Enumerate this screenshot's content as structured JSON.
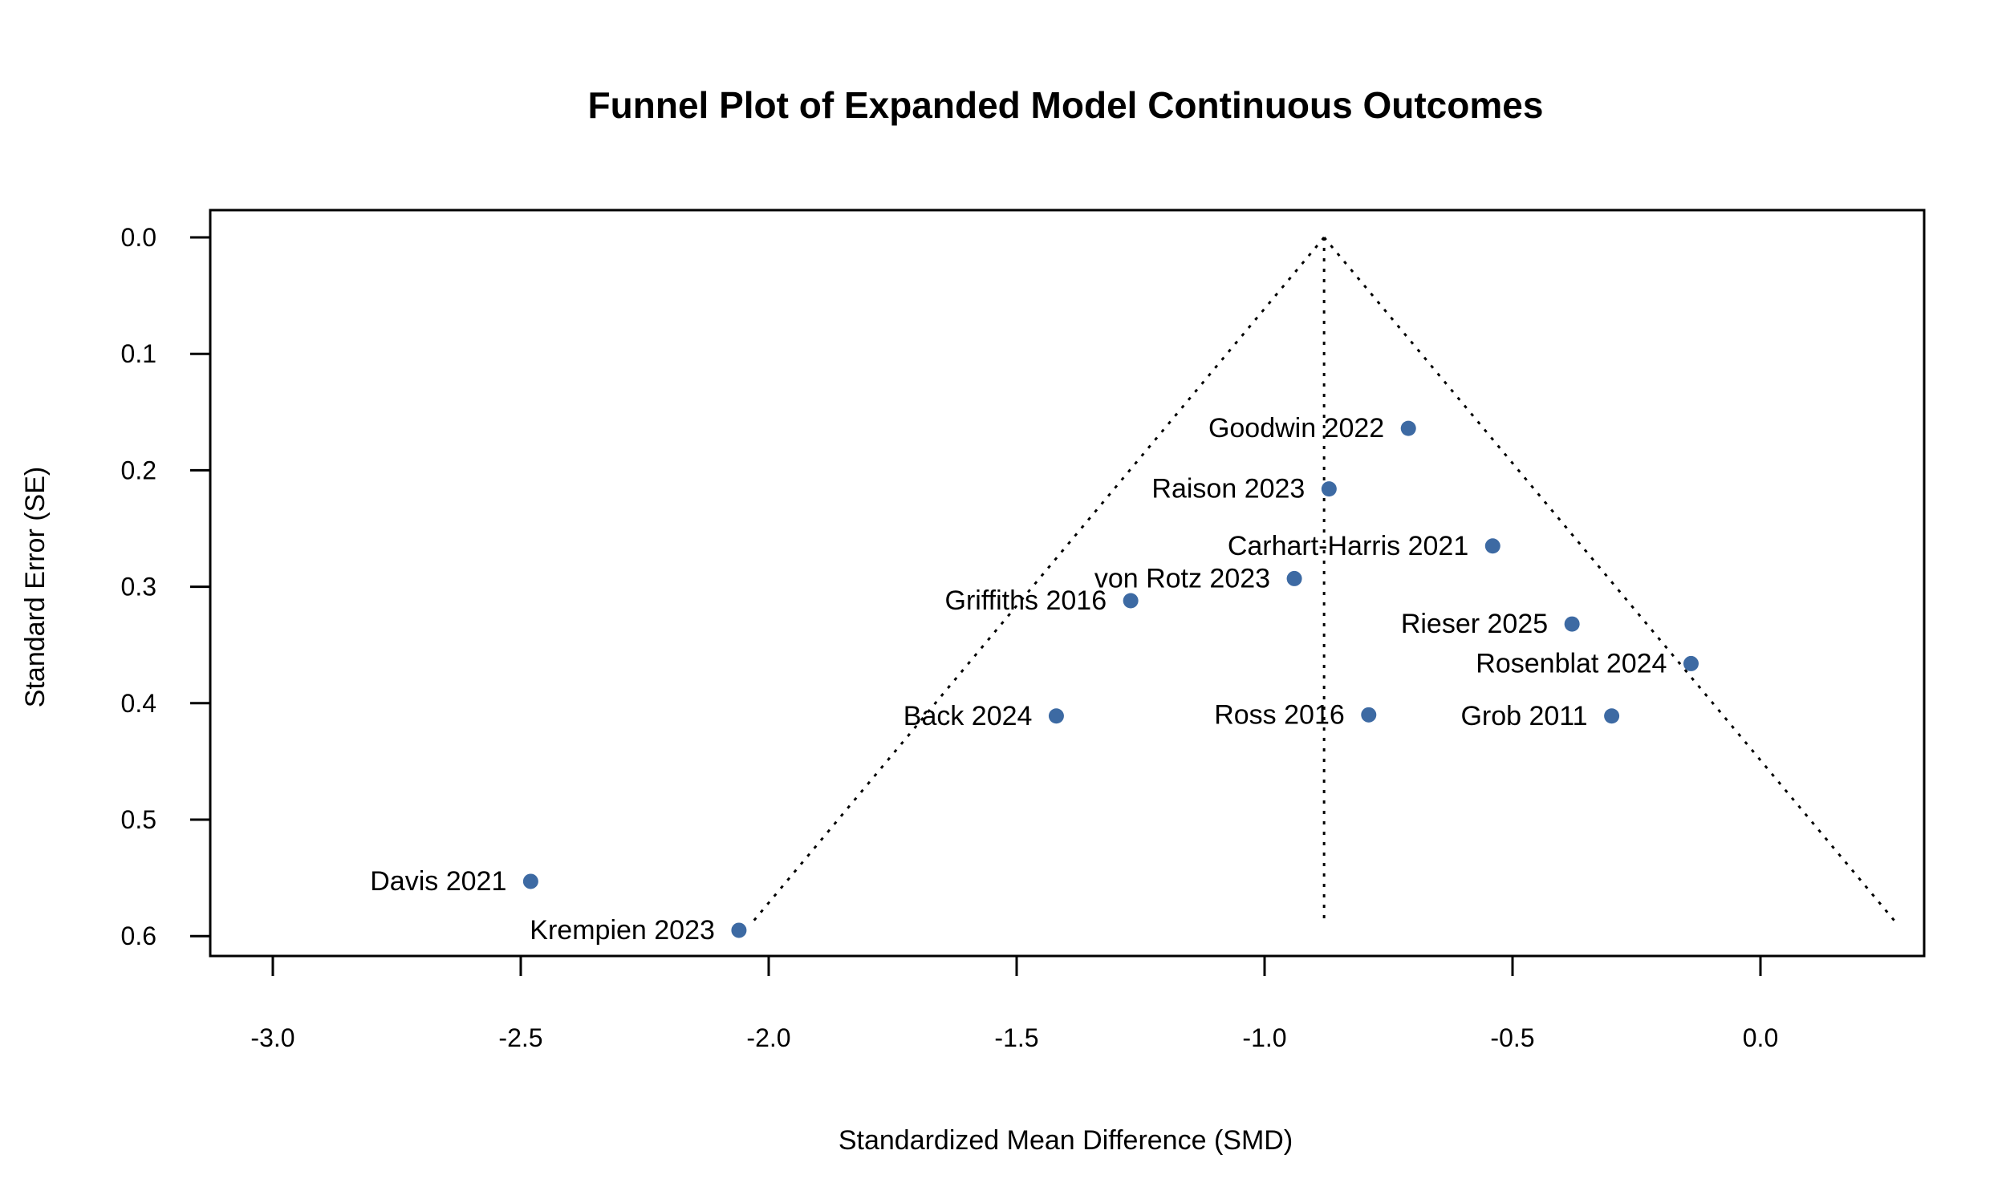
{
  "chart_data": {
    "type": "scatter",
    "title": "Funnel Plot of Expanded Model Continuous Outcomes",
    "xlabel": "Standardized Mean Difference (SMD)",
    "ylabel": "Standard Error (SE)",
    "xlim": [
      -3.0,
      0.0
    ],
    "ylim": [
      0.0,
      0.6
    ],
    "y_reversed": true,
    "x_ticks": [
      "-3.0",
      "-2.5",
      "-2.0",
      "-1.5",
      "-1.0",
      "-0.5",
      "0.0"
    ],
    "y_ticks": [
      "0.0",
      "0.1",
      "0.2",
      "0.3",
      "0.4",
      "0.5",
      "0.6"
    ],
    "point_color": "#3d6aa3",
    "funnel": {
      "center": -0.88,
      "se_max": 0.59,
      "style": "dotted"
    },
    "points": [
      {
        "label": "Goodwin 2022",
        "x": -0.71,
        "y": 0.164
      },
      {
        "label": "Raison 2023",
        "x": -0.87,
        "y": 0.216
      },
      {
        "label": "Carhart-Harris 2021",
        "x": -0.54,
        "y": 0.265
      },
      {
        "label": "von Rotz 2023",
        "x": -0.94,
        "y": 0.293
      },
      {
        "label": "Griffiths 2016",
        "x": -1.27,
        "y": 0.312
      },
      {
        "label": "Rieser 2025",
        "x": -0.38,
        "y": 0.332
      },
      {
        "label": "Rosenblat 2024",
        "x": -0.14,
        "y": 0.366
      },
      {
        "label": "Back 2024",
        "x": -1.42,
        "y": 0.411
      },
      {
        "label": "Ross 2016",
        "x": -0.79,
        "y": 0.41
      },
      {
        "label": "Grob 2011",
        "x": -0.3,
        "y": 0.411
      },
      {
        "label": "Davis 2021",
        "x": -2.48,
        "y": 0.553
      },
      {
        "label": "Krempien 2023",
        "x": -2.06,
        "y": 0.595
      }
    ]
  }
}
